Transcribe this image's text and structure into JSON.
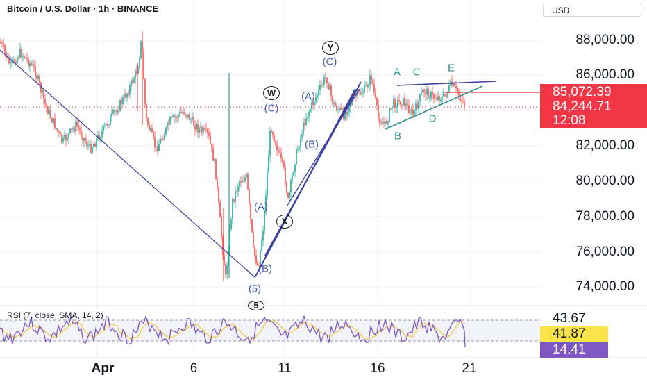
{
  "header": {
    "title": "Bitcoin / U.S. Dollar · 1h · BINANCE",
    "currency": "USD"
  },
  "price_axis": {
    "labels": [
      "88,000.00",
      "86,000.00",
      "82,000.00",
      "80,000.00",
      "78,000.00",
      "76,000.00",
      "74,000.00"
    ],
    "values": [
      88000,
      86000,
      82000,
      80000,
      78000,
      76000,
      74000
    ]
  },
  "price_tags": {
    "alert_price": "85,072.39",
    "last_price": "84,244.71",
    "countdown": "12:08"
  },
  "time_axis": {
    "labels": [
      "Apr",
      "6",
      "11",
      "16",
      "21"
    ]
  },
  "rsi": {
    "title": "RSI (7, close, SMA, 14, 2)",
    "upper_band": "43.67",
    "sma_value": "41.87",
    "rsi_value": "14.41"
  },
  "wave_labels": {
    "five_paren": "(5)",
    "five_circle": "5",
    "b_low": "(B)",
    "a_mid": "(A)",
    "x_circle": "X",
    "b_mid": "(B)",
    "c_w": "(C)",
    "w_circle": "W",
    "a_top": "(A)",
    "c_y": "(C)",
    "y_circle": "Y",
    "tri_a": "A",
    "tri_b": "B",
    "tri_c": "C",
    "tri_d": "D",
    "tri_e": "E"
  },
  "colors": {
    "up": "#26a69a",
    "down": "#ef5350",
    "wave_line": "#3b3f9e",
    "triangle_line": "#2f8f8a",
    "rsi_line": "#7e57c2",
    "rsi_sma": "#f2c94c",
    "price_tag_red": "#f23645",
    "rsi_tag_purple": "#7e57c2",
    "sma_tag_yellow": "#fbe34c"
  }
}
